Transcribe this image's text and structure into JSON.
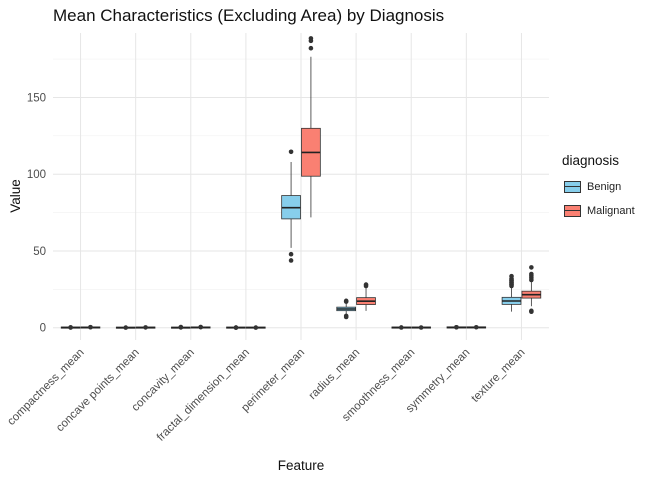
{
  "chart_data": {
    "type": "boxplot",
    "title": "Mean Characteristics (Excluding Area) by Diagnosis",
    "xlabel": "Feature",
    "ylabel": "Value",
    "ylim": [
      -8,
      192
    ],
    "yticks": [
      0,
      50,
      100,
      150
    ],
    "grid": true,
    "legend_position": "right",
    "legend_title": "diagnosis",
    "categories": [
      "compactness_mean",
      "concave points_mean",
      "concavity_mean",
      "fractal_dimension_mean",
      "perimeter_mean",
      "radius_mean",
      "smoothness_mean",
      "symmetry_mean",
      "texture_mean"
    ],
    "series": [
      {
        "name": "Benign",
        "color": "#87CEEB",
        "boxes": [
          {
            "min": 0.02,
            "q1": 0.06,
            "median": 0.08,
            "q3": 0.1,
            "max": 0.15,
            "outliers": [
              0.18,
              0.2
            ]
          },
          {
            "min": 0.0,
            "q1": 0.02,
            "median": 0.02,
            "q3": 0.03,
            "max": 0.06,
            "outliers": [
              0.08
            ]
          },
          {
            "min": 0.0,
            "q1": 0.02,
            "median": 0.04,
            "q3": 0.06,
            "max": 0.12,
            "outliers": [
              0.2,
              0.3,
              0.41
            ]
          },
          {
            "min": 0.05,
            "q1": 0.06,
            "median": 0.06,
            "q3": 0.07,
            "max": 0.08,
            "outliers": [
              0.09,
              0.1
            ]
          },
          {
            "min": 52,
            "q1": 70.9,
            "median": 78.2,
            "q3": 86.1,
            "max": 108,
            "outliers": [
              43.8,
              47.9,
              114.6
            ]
          },
          {
            "min": 8.2,
            "q1": 11.1,
            "median": 12.2,
            "q3": 13.4,
            "max": 16.5,
            "outliers": [
              7.0,
              7.7,
              17.0,
              17.5
            ]
          },
          {
            "min": 0.06,
            "q1": 0.08,
            "median": 0.09,
            "q3": 0.1,
            "max": 0.12,
            "outliers": [
              0.16
            ]
          },
          {
            "min": 0.11,
            "q1": 0.16,
            "median": 0.17,
            "q3": 0.19,
            "max": 0.24,
            "outliers": [
              0.27,
              0.3
            ]
          },
          {
            "min": 10.5,
            "q1": 15.2,
            "median": 17.4,
            "q3": 19.8,
            "max": 26.5,
            "outliers": [
              27.2,
              28.0,
              28.5,
              29.3,
              29.8,
              30.7,
              31.1,
              32.0,
              33.6
            ]
          }
        ]
      },
      {
        "name": "Malignant",
        "color": "#FA8072",
        "boxes": [
          {
            "min": 0.05,
            "q1": 0.11,
            "median": 0.13,
            "q3": 0.17,
            "max": 0.28,
            "outliers": [
              0.3,
              0.35
            ]
          },
          {
            "min": 0.02,
            "q1": 0.06,
            "median": 0.09,
            "q3": 0.1,
            "max": 0.16,
            "outliers": [
              0.2
            ]
          },
          {
            "min": 0.02,
            "q1": 0.11,
            "median": 0.15,
            "q3": 0.2,
            "max": 0.35,
            "outliers": [
              0.38,
              0.43
            ]
          },
          {
            "min": 0.05,
            "q1": 0.06,
            "median": 0.06,
            "q3": 0.07,
            "max": 0.09,
            "outliers": [
              0.1
            ]
          },
          {
            "min": 71.9,
            "q1": 98.7,
            "median": 114.2,
            "q3": 129.9,
            "max": 176.5,
            "outliers": [
              182.1,
              186.9,
              188.5
            ]
          },
          {
            "min": 11.0,
            "q1": 15.1,
            "median": 17.3,
            "q3": 19.6,
            "max": 26.5,
            "outliers": [
              27.2,
              28.1
            ]
          },
          {
            "min": 0.07,
            "q1": 0.09,
            "median": 0.1,
            "q3": 0.11,
            "max": 0.14,
            "outliers": [
              0.15
            ]
          },
          {
            "min": 0.13,
            "q1": 0.17,
            "median": 0.19,
            "q3": 0.21,
            "max": 0.27,
            "outliers": [
              0.3
            ]
          },
          {
            "min": 14.0,
            "q1": 19.3,
            "median": 21.5,
            "q3": 23.8,
            "max": 30.0,
            "outliers": [
              10.4,
              11.0,
              31.1,
              32.5,
              33.8,
              35.0,
              39.3
            ]
          }
        ]
      }
    ]
  }
}
